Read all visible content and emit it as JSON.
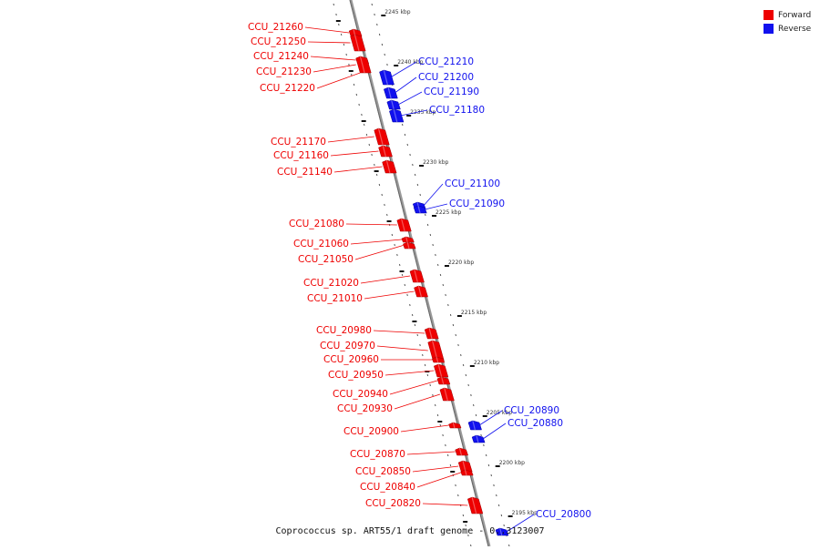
{
  "title": "Coprococcus sp. ART55/1 draft genome  -  0..3123007",
  "legend": [
    {
      "label": "Forward",
      "color": "#ee0000"
    },
    {
      "label": "Reverse",
      "color": "#1111ee"
    }
  ],
  "colors": {
    "forward": "#ee0000",
    "reverse": "#1111ee",
    "backbone": "#888888"
  },
  "ticks": [
    {
      "label": "2245 kbp",
      "pos": 2245
    },
    {
      "label": "2240 kbp",
      "pos": 2240
    },
    {
      "label": "2235 kbp",
      "pos": 2235
    },
    {
      "label": "2230 kbp",
      "pos": 2230
    },
    {
      "label": "2225 kbp",
      "pos": 2225
    },
    {
      "label": "2220 kbp",
      "pos": 2220
    },
    {
      "label": "2215 kbp",
      "pos": 2215
    },
    {
      "label": "2210 kbp",
      "pos": 2210
    },
    {
      "label": "2205 kbp",
      "pos": 2205
    },
    {
      "label": "2200 kbp",
      "pos": 2200
    },
    {
      "label": "2195 kbp",
      "pos": 2195
    }
  ],
  "genes": [
    {
      "name": "CCU_21260",
      "strand": "forward"
    },
    {
      "name": "CCU_21250",
      "strand": "forward"
    },
    {
      "name": "CCU_21240",
      "strand": "forward"
    },
    {
      "name": "CCU_21230",
      "strand": "forward"
    },
    {
      "name": "CCU_21220",
      "strand": "forward"
    },
    {
      "name": "CCU_21210",
      "strand": "reverse"
    },
    {
      "name": "CCU_21200",
      "strand": "reverse"
    },
    {
      "name": "CCU_21190",
      "strand": "reverse"
    },
    {
      "name": "CCU_21180",
      "strand": "reverse"
    },
    {
      "name": "CCU_21170",
      "strand": "forward"
    },
    {
      "name": "CCU_21160",
      "strand": "forward"
    },
    {
      "name": "CCU_21140",
      "strand": "forward"
    },
    {
      "name": "CCU_21100",
      "strand": "reverse"
    },
    {
      "name": "CCU_21090",
      "strand": "reverse"
    },
    {
      "name": "CCU_21080",
      "strand": "forward"
    },
    {
      "name": "CCU_21060",
      "strand": "forward"
    },
    {
      "name": "CCU_21050",
      "strand": "forward"
    },
    {
      "name": "CCU_21020",
      "strand": "forward"
    },
    {
      "name": "CCU_21010",
      "strand": "forward"
    },
    {
      "name": "CCU_20980",
      "strand": "forward"
    },
    {
      "name": "CCU_20970",
      "strand": "forward"
    },
    {
      "name": "CCU_20960",
      "strand": "forward"
    },
    {
      "name": "CCU_20950",
      "strand": "forward"
    },
    {
      "name": "CCU_20940",
      "strand": "forward"
    },
    {
      "name": "CCU_20930",
      "strand": "forward"
    },
    {
      "name": "CCU_20890",
      "strand": "reverse"
    },
    {
      "name": "CCU_20880",
      "strand": "reverse"
    },
    {
      "name": "CCU_20900",
      "strand": "forward"
    },
    {
      "name": "CCU_20870",
      "strand": "forward"
    },
    {
      "name": "CCU_20850",
      "strand": "forward"
    },
    {
      "name": "CCU_20840",
      "strand": "forward"
    },
    {
      "name": "CCU_20820",
      "strand": "forward"
    },
    {
      "name": "CCU_20800",
      "strand": "reverse"
    }
  ]
}
